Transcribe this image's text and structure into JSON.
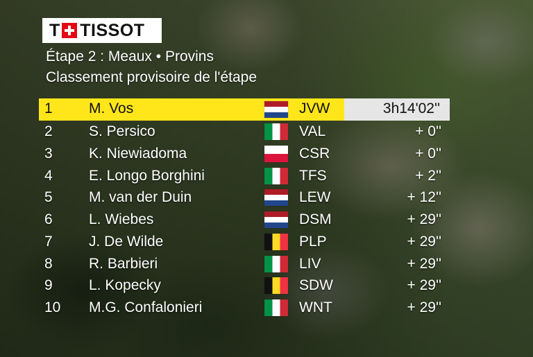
{
  "brand": {
    "name": "TISSOT"
  },
  "stage_title": "Étape 2 : Meaux • Provins",
  "subtitle": "Classement provisoire de l'étape",
  "colors": {
    "leader_bg": "#ffe61a",
    "time_bg": "#e6e6e6",
    "logo_red": "#e30613"
  },
  "rows": [
    {
      "rank": "1",
      "name": "M. Vos",
      "flag": "netherlands-flag-icon",
      "team": "JVW",
      "time": "3h14'02''"
    },
    {
      "rank": "2",
      "name": "S. Persico",
      "flag": "italy-flag-icon",
      "team": "VAL",
      "time": "+ 0''"
    },
    {
      "rank": "3",
      "name": "K. Niewiadoma",
      "flag": "poland-flag-icon",
      "team": "CSR",
      "time": "+ 0''"
    },
    {
      "rank": "4",
      "name": "E. Longo Borghini",
      "flag": "italy-flag-icon",
      "team": "TFS",
      "time": "+ 2''"
    },
    {
      "rank": "5",
      "name": "M. van der Duin",
      "flag": "netherlands-flag-icon",
      "team": "LEW",
      "time": "+ 12''"
    },
    {
      "rank": "6",
      "name": "L. Wiebes",
      "flag": "netherlands-flag-icon",
      "team": "DSM",
      "time": "+ 29''"
    },
    {
      "rank": "7",
      "name": "J. De Wilde",
      "flag": "belgium-flag-icon",
      "team": "PLP",
      "time": "+ 29''"
    },
    {
      "rank": "8",
      "name": "R. Barbieri",
      "flag": "italy-flag-icon",
      "team": "LIV",
      "time": "+ 29''"
    },
    {
      "rank": "9",
      "name": "L. Kopecky",
      "flag": "belgium-flag-icon",
      "team": "SDW",
      "time": "+ 29''"
    },
    {
      "rank": "10",
      "name": "M.G. Confalonieri",
      "flag": "italy-flag-icon",
      "team": "WNT",
      "time": "+ 29''"
    }
  ]
}
